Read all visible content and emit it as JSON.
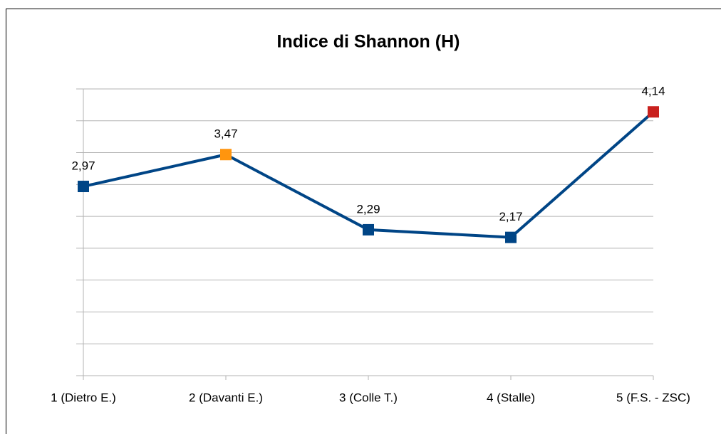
{
  "chart_data": {
    "type": "line",
    "title": "Indice di Shannon (H)",
    "categories": [
      "1 (Dietro E.)",
      "2 (Davanti E.)",
      "3 (Colle T.)",
      "4 (Stalle)",
      "5 (F.S. - ZSC)"
    ],
    "series": [
      {
        "color": "#004586",
        "values": [
          2.97,
          3.47,
          2.29,
          2.17,
          4.14
        ],
        "value_labels": [
          "2,97",
          "3,47",
          "2,29",
          "2,17",
          "4,14"
        ],
        "marker_colors": [
          "#004586",
          "#ff950e",
          "#004586",
          "#004586",
          "#c9211e"
        ]
      }
    ],
    "ylim": [
      0,
      4.5
    ],
    "yticks": [
      0,
      0.5,
      1,
      1.5,
      2,
      2.5,
      3,
      3.5,
      4,
      4.5
    ],
    "grid": true
  }
}
